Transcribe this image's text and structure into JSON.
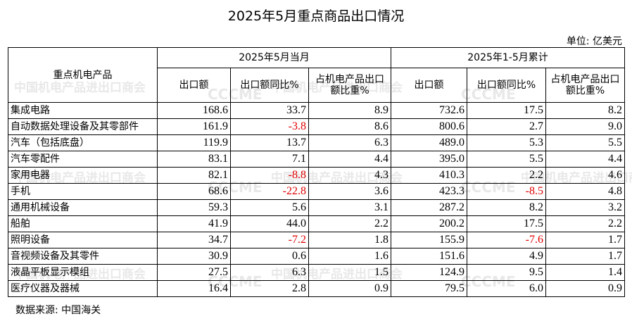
{
  "title": "2025年5月重点商品出口情况",
  "unit": "单位:  亿美元",
  "header": {
    "product": "重点机电产品",
    "group1": "2025年5月当月",
    "group2": "2025年1-5月累计",
    "col_export": "出口额",
    "col_yoy": "出口额同比%",
    "col_share": "占机电产品出口额比重%"
  },
  "rows": [
    {
      "name": "集成电路",
      "m_exp": "168.6",
      "m_yoy": "33.7",
      "m_share": "8.9",
      "c_exp": "732.6",
      "c_yoy": "17.5",
      "c_share": "8.2"
    },
    {
      "name": "自动数据处理设备及其零部件",
      "m_exp": "161.9",
      "m_yoy": "-3.8",
      "m_share": "8.6",
      "c_exp": "800.6",
      "c_yoy": "2.7",
      "c_share": "9.0"
    },
    {
      "name": "汽车（包括底盘）",
      "m_exp": "119.9",
      "m_yoy": "13.7",
      "m_share": "6.3",
      "c_exp": "489.0",
      "c_yoy": "5.3",
      "c_share": "5.5"
    },
    {
      "name": "汽车零配件",
      "m_exp": "83.1",
      "m_yoy": "7.1",
      "m_share": "4.4",
      "c_exp": "395.0",
      "c_yoy": "5.5",
      "c_share": "4.4"
    },
    {
      "name": "家用电器",
      "m_exp": "82.1",
      "m_yoy": "-8.8",
      "m_share": "4.3",
      "c_exp": "410.3",
      "c_yoy": "2.2",
      "c_share": "4.6"
    },
    {
      "name": "手机",
      "m_exp": "68.6",
      "m_yoy": "-22.8",
      "m_share": "3.6",
      "c_exp": "423.3",
      "c_yoy": "-8.5",
      "c_share": "4.8"
    },
    {
      "name": "通用机械设备",
      "m_exp": "59.3",
      "m_yoy": "5.6",
      "m_share": "3.1",
      "c_exp": "287.2",
      "c_yoy": "8.2",
      "c_share": "3.2"
    },
    {
      "name": "船舶",
      "m_exp": "41.9",
      "m_yoy": "44.0",
      "m_share": "2.2",
      "c_exp": "200.2",
      "c_yoy": "17.5",
      "c_share": "2.2"
    },
    {
      "name": "照明设备",
      "m_exp": "34.7",
      "m_yoy": "-7.2",
      "m_share": "1.8",
      "c_exp": "155.9",
      "c_yoy": "-7.6",
      "c_share": "1.7"
    },
    {
      "name": "音视频设备及其零件",
      "m_exp": "30.9",
      "m_yoy": "0.6",
      "m_share": "1.6",
      "c_exp": "151.6",
      "c_yoy": "4.9",
      "c_share": "1.7"
    },
    {
      "name": "液晶平板显示模组",
      "m_exp": "27.5",
      "m_yoy": "6.3",
      "m_share": "1.5",
      "c_exp": "124.9",
      "c_yoy": "9.5",
      "c_share": "1.4"
    },
    {
      "name": "医疗仪器及器械",
      "m_exp": "16.4",
      "m_yoy": "2.8",
      "m_share": "0.9",
      "c_exp": "79.5",
      "c_yoy": "6.0",
      "c_share": "0.9"
    }
  ],
  "source": "数据来源:  中国海关",
  "watermark": {
    "cn": "中国机电产品进出口商会",
    "logo": "CCCME"
  }
}
